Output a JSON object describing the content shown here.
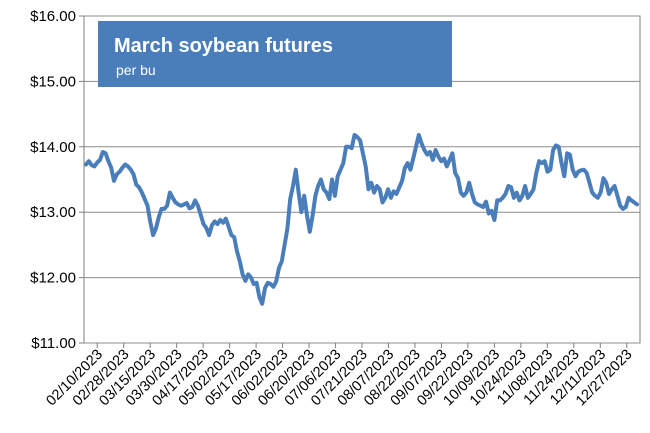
{
  "chart_data": {
    "type": "line",
    "title": "March soybean futures",
    "subtitle": "per bu",
    "xlabel": "",
    "ylabel": "",
    "ylim": [
      11.0,
      16.0
    ],
    "y_ticks": [
      11.0,
      12.0,
      13.0,
      14.0,
      15.0,
      16.0
    ],
    "y_tick_labels": [
      "$11.00",
      "$12.00",
      "$13.00",
      "$14.00",
      "$15.00",
      "$16.00"
    ],
    "x_tick_labels": [
      "02/10/2023",
      "02/28/2023",
      "03/15/2023",
      "03/30/2023",
      "04/17/2023",
      "05/02/2023",
      "05/17/2023",
      "06/02/2023",
      "06/20/2023",
      "07/06/2023",
      "07/21/2023",
      "08/07/2023",
      "08/22/2023",
      "09/07/2023",
      "09/22/2023",
      "10/09/2023",
      "10/24/2023",
      "11/08/2023",
      "11/24/2023",
      "12/11/2023",
      "12/27/2023"
    ],
    "grid": true,
    "series_color": "#4a7ebb",
    "series": [
      {
        "values": [
          13.73,
          13.78,
          13.72,
          13.7,
          13.76,
          13.8,
          13.92,
          13.9,
          13.78,
          13.68,
          13.48,
          13.58,
          13.62,
          13.68,
          13.73,
          13.7,
          13.65,
          13.58,
          13.42,
          13.38,
          13.3,
          13.2,
          13.1,
          12.85,
          12.65,
          12.75,
          12.92,
          13.05,
          13.05,
          13.1,
          13.3,
          13.22,
          13.15,
          13.12,
          13.1,
          13.12,
          13.14,
          13.06,
          13.08,
          13.18,
          13.1,
          12.96,
          12.82,
          12.76,
          12.65,
          12.8,
          12.86,
          12.82,
          12.88,
          12.84,
          12.9,
          12.78,
          12.65,
          12.62,
          12.4,
          12.25,
          12.05,
          11.95,
          12.05,
          12.0,
          11.9,
          11.92,
          11.7,
          11.6,
          11.84,
          11.92,
          11.9,
          11.86,
          11.94,
          12.15,
          12.25,
          12.5,
          12.75,
          13.2,
          13.4,
          13.65,
          13.3,
          13.0,
          13.25,
          12.95,
          12.7,
          12.95,
          13.25,
          13.4,
          13.5,
          13.35,
          13.3,
          13.2,
          13.5,
          13.25,
          13.55,
          13.65,
          13.75,
          14.0,
          14.0,
          13.98,
          14.18,
          14.15,
          14.1,
          13.9,
          13.7,
          13.35,
          13.45,
          13.3,
          13.4,
          13.35,
          13.15,
          13.22,
          13.35,
          13.22,
          13.32,
          13.28,
          13.38,
          13.48,
          13.68,
          13.75,
          13.65,
          13.82,
          14.0,
          14.18,
          14.05,
          13.95,
          13.88,
          13.92,
          13.8,
          13.95,
          13.85,
          13.78,
          13.82,
          13.7,
          13.8,
          13.9,
          13.6,
          13.52,
          13.3,
          13.25,
          13.3,
          13.45,
          13.28,
          13.15,
          13.12,
          13.1,
          13.08,
          13.16,
          12.98,
          13.02,
          12.88,
          13.18,
          13.18,
          13.22,
          13.28,
          13.4,
          13.38,
          13.22,
          13.3,
          13.18,
          13.25,
          13.4,
          13.22,
          13.28,
          13.35,
          13.6,
          13.78,
          13.75,
          13.78,
          13.62,
          13.65,
          13.95,
          14.02,
          14.0,
          13.75,
          13.55,
          13.9,
          13.88,
          13.65,
          13.55,
          13.62,
          13.64,
          13.65,
          13.6,
          13.45,
          13.3,
          13.25,
          13.22,
          13.3,
          13.52,
          13.45,
          13.28,
          13.35,
          13.4,
          13.25,
          13.1,
          13.05,
          13.08,
          13.22,
          13.18,
          13.15,
          13.12
        ]
      }
    ]
  }
}
